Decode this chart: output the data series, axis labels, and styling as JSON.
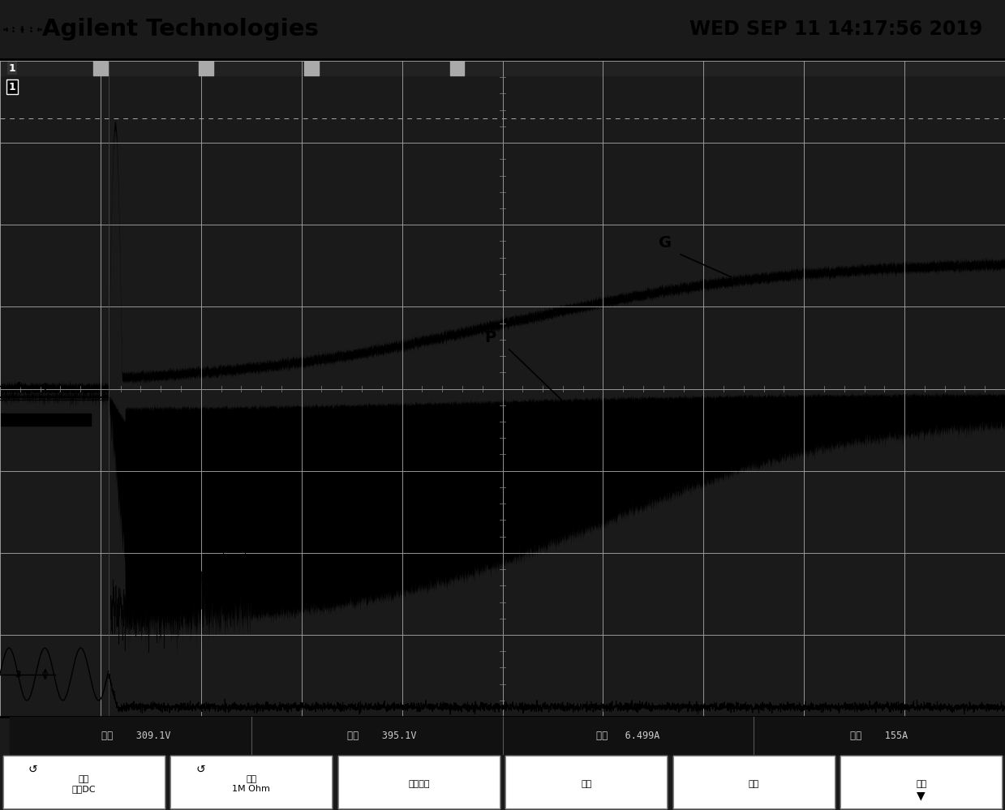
{
  "title_left": "Agilent Technologies",
  "title_right": "WED SEP 11 14:17:56 2019",
  "screen_bg": "#ffffff",
  "grid_color": "#888888",
  "trace_color": "#000000",
  "outer_bg": "#1a1a1a",
  "header_bg": "#e8e8e8",
  "label_G": "G",
  "label_P": "P",
  "bottom_bar_bg": "#000000",
  "meas_row_bg": "#000000",
  "meas_texts": [
    "均方    309.1V",
    "最大    395.1V",
    "均方   6.499A",
    "最大    155A"
  ],
  "button_labels": [
    "耦合\n直流DC",
    "阻抗\n1M Ohm",
    "带宽限制",
    "微调",
    "倒置",
    "探头"
  ]
}
